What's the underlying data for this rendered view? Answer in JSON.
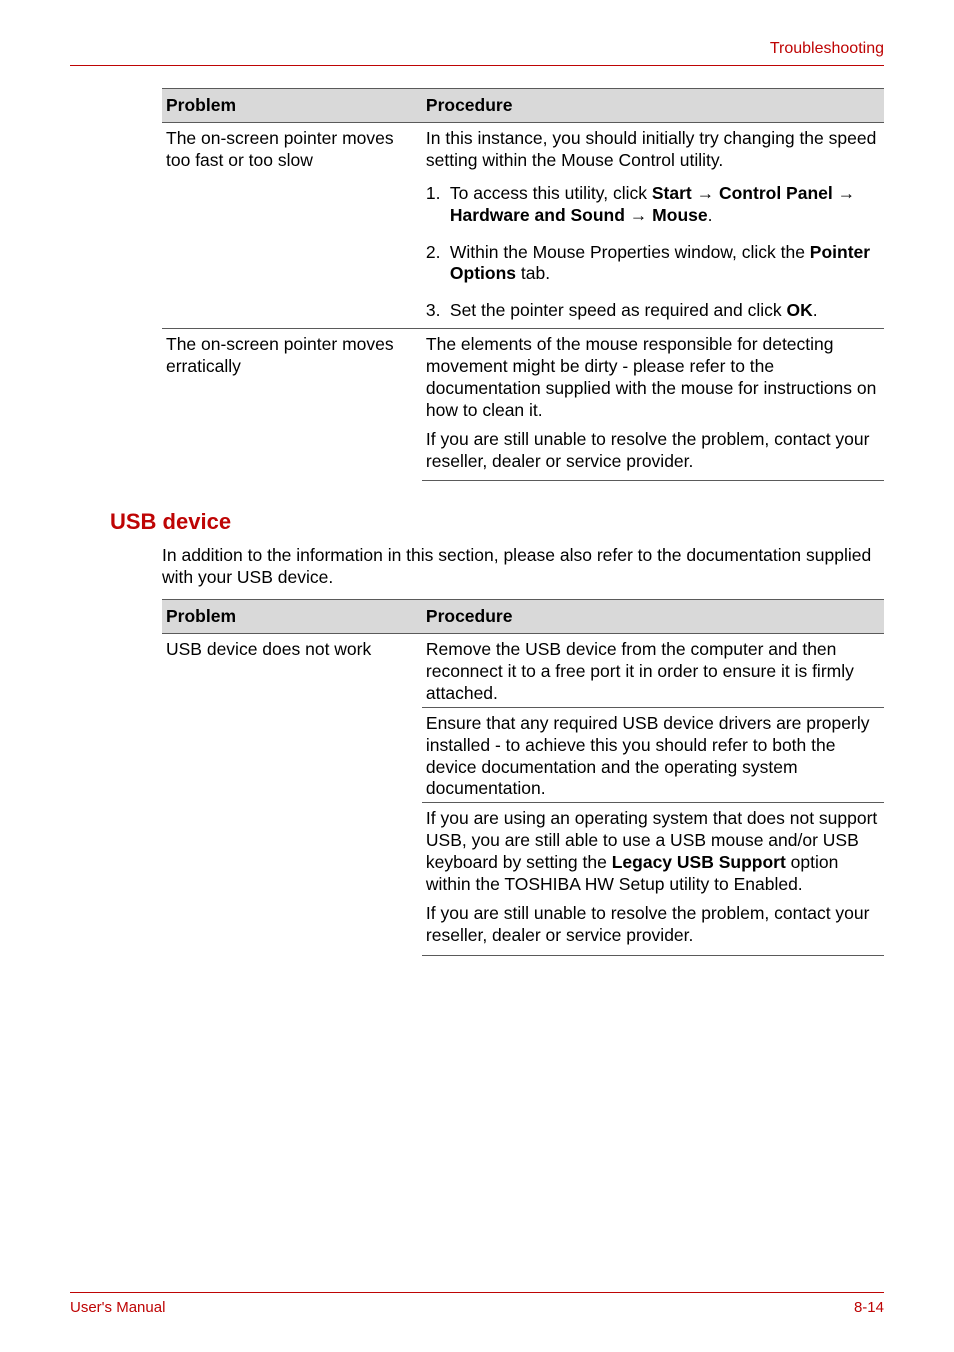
{
  "header": {
    "right_text": "Troubleshooting"
  },
  "table1": {
    "header_problem": "Problem",
    "header_procedure": "Procedure",
    "r1_problem_a": "The on-screen pointer moves too fast or too slow",
    "r1_problem_b": "",
    "r1_proc_intro": "In this instance, you should initially try changing the speed setting within the Mouse Control utility.",
    "r1_step1_num": "1.",
    "r1_step1_a": "To access this utility, click ",
    "r1_step1_b_start": "Start",
    "r1_step1_arrow1": " → ",
    "r1_step1_b_control": "Control Panel",
    "r1_step1_arrow2": " → ",
    "r1_step1_b_hw": "Hardware and Sound",
    "r1_step1_arrow3": " → ",
    "r1_step1_b_mouse": "Mouse",
    "r1_step1_period": ".",
    "r1_step2_num": "2.",
    "r1_step2_a": "Within the Mouse Properties window, click the ",
    "r1_step2_b": "Pointer Options",
    "r1_step2_c": " tab.",
    "r1_step3_num": "3.",
    "r1_step3_a": "Set the pointer speed as required and click ",
    "r1_step3_b": "OK",
    "r1_step3_c": ".",
    "r2_problem": "The on-screen pointer moves erratically",
    "r2_proc_a": "The elements of the mouse responsible for detecting movement might be dirty - please refer to the documentation supplied with the mouse for instructions on how to clean it.",
    "r2_proc_b": "If you are still unable to resolve the problem, contact your reseller, dealer or service provider."
  },
  "section2": {
    "heading": "USB device",
    "intro": "In addition to the information in this section, please also refer to the documentation supplied with your USB device."
  },
  "table2": {
    "header_problem": "Problem",
    "header_procedure": "Procedure",
    "r1_problem": "USB device does not work",
    "r1_proc_a": "Remove the USB device from the computer and then reconnect it to a free port it in order to ensure it is firmly attached.",
    "r1_proc_b": "Ensure that any required USB device drivers are properly installed - to achieve this you should refer to both the device documentation and the operating system documentation.",
    "r1_proc_c_pre": "If you are using an operating system that does not support USB, you are still able to use a USB mouse and/or USB keyboard by setting the ",
    "r1_proc_c_bold": "Legacy USB Support",
    "r1_proc_c_post": " option within the TOSHIBA HW Setup utility to Enabled.",
    "r1_proc_d": "If you are still unable to resolve the problem, contact your reseller, dealer or service provider."
  },
  "footer": {
    "left": "User's Manual",
    "right": "8-14"
  },
  "colors": {
    "brand": "#be0404",
    "table_border": "#5a5a5a",
    "header_bg": "#d9d9d9",
    "text": "#000000",
    "bg": "#ffffff"
  },
  "fonts": {
    "body_size_pt": 13,
    "heading_size_pt": 17,
    "footer_size_pt": 11
  }
}
